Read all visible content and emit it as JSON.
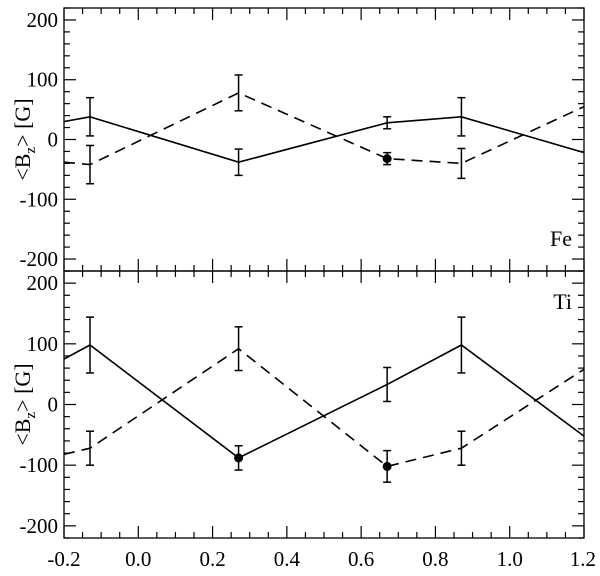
{
  "chart_data": [
    {
      "type": "line",
      "panel_label": "Fe",
      "ylabel": "<B_z> [G]",
      "xlim": [
        -0.2,
        1.2
      ],
      "ylim": [
        -220,
        220
      ],
      "yticks": [
        -200,
        -100,
        0,
        100,
        200
      ],
      "xticks": [
        -0.2,
        0.0,
        0.2,
        0.4,
        0.6,
        0.8,
        1.0,
        1.2
      ],
      "series": [
        {
          "style": "solid",
          "x": [
            -0.2,
            -0.13,
            0.27,
            0.67,
            0.87,
            1.2
          ],
          "y": [
            30,
            38,
            -38,
            28,
            38,
            -22
          ]
        },
        {
          "style": "dashed",
          "x": [
            -0.2,
            -0.13,
            0.27,
            0.67,
            0.87,
            1.2
          ],
          "y": [
            -38,
            -42,
            78,
            -32,
            -40,
            55
          ]
        }
      ],
      "errorbars": [
        {
          "x": -0.13,
          "y": 38,
          "err": 32
        },
        {
          "x": -0.13,
          "y": -42,
          "err": 32
        },
        {
          "x": 0.27,
          "y": 78,
          "err": 30
        },
        {
          "x": 0.27,
          "y": -38,
          "err": 22
        },
        {
          "x": 0.67,
          "y": 28,
          "err": 10
        },
        {
          "x": 0.67,
          "y": -32,
          "err": 10
        },
        {
          "x": 0.87,
          "y": 38,
          "err": 32
        },
        {
          "x": 0.87,
          "y": -40,
          "err": 25
        }
      ],
      "points": [
        {
          "x": 0.67,
          "y": -32
        }
      ]
    },
    {
      "type": "line",
      "panel_label": "Ti",
      "ylabel": "<B_z> [G]",
      "xlim": [
        -0.2,
        1.2
      ],
      "ylim": [
        -220,
        220
      ],
      "yticks": [
        -200,
        -100,
        0,
        100,
        200
      ],
      "xticks": [
        -0.2,
        0.0,
        0.2,
        0.4,
        0.6,
        0.8,
        1.0,
        1.2
      ],
      "xticklabels": [
        "-0.2",
        "0.0",
        "0.2",
        "0.4",
        "0.6",
        "0.8",
        "1.0",
        "1.2"
      ],
      "series": [
        {
          "style": "solid",
          "x": [
            -0.2,
            -0.13,
            0.27,
            0.67,
            0.87,
            1.2
          ],
          "y": [
            75,
            98,
            -88,
            33,
            98,
            -52
          ]
        },
        {
          "style": "dashed",
          "x": [
            -0.2,
            -0.13,
            0.27,
            0.67,
            0.87,
            1.2
          ],
          "y": [
            -82,
            -72,
            92,
            -102,
            -72,
            58
          ]
        }
      ],
      "errorbars": [
        {
          "x": -0.13,
          "y": 98,
          "err": 46
        },
        {
          "x": -0.13,
          "y": -72,
          "err": 28
        },
        {
          "x": 0.27,
          "y": 92,
          "err": 36
        },
        {
          "x": 0.27,
          "y": -88,
          "err": 20
        },
        {
          "x": 0.67,
          "y": 33,
          "err": 28
        },
        {
          "x": 0.67,
          "y": -102,
          "err": 26
        },
        {
          "x": 0.87,
          "y": 98,
          "err": 46
        },
        {
          "x": 0.87,
          "y": -72,
          "err": 28
        }
      ],
      "points": [
        {
          "x": 0.27,
          "y": -88
        },
        {
          "x": 0.67,
          "y": -102
        }
      ]
    }
  ]
}
